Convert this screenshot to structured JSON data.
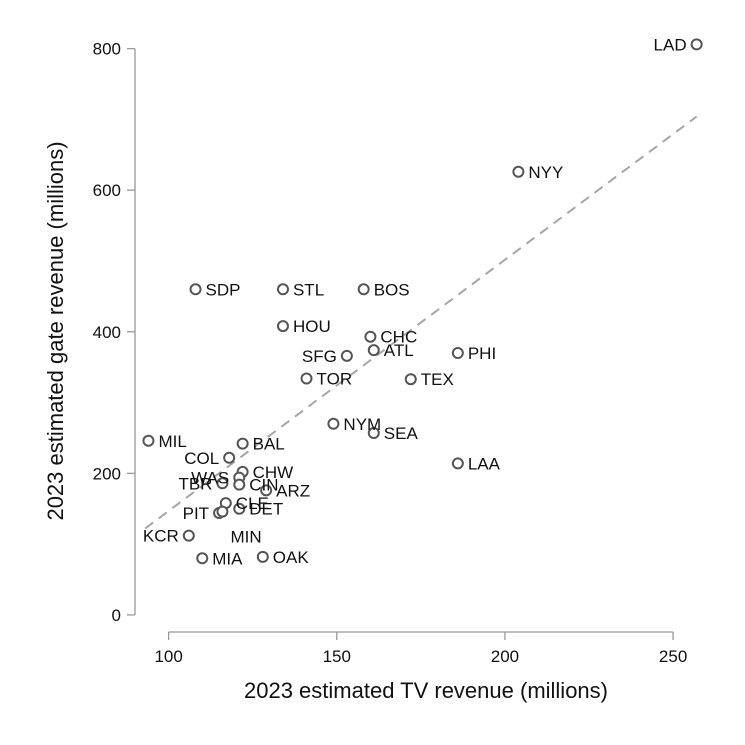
{
  "chart_data": {
    "type": "scatter",
    "title": "",
    "xlabel": "2023 estimated TV revenue (millions)",
    "ylabel": "2023 estimated gate revenue (millions)",
    "xlim": [
      90,
      258
    ],
    "ylim": [
      -10,
      815
    ],
    "x_ticks": [
      100,
      150,
      200,
      250
    ],
    "y_ticks": [
      0,
      200,
      400,
      600,
      800
    ],
    "grid": false,
    "colors": {
      "points": "#555555",
      "trend": "#a6a6a6",
      "axis": "#999999",
      "text": "#111111"
    },
    "trendline": {
      "style": "dashed",
      "from": [
        93,
        122
      ],
      "to": [
        257,
        704
      ]
    },
    "points": [
      {
        "team": "LAD",
        "x": 257,
        "y": 806,
        "label_pos": "left"
      },
      {
        "team": "NYY",
        "x": 204,
        "y": 626,
        "label_pos": "right"
      },
      {
        "team": "SDP",
        "x": 108,
        "y": 460,
        "label_pos": "right"
      },
      {
        "team": "STL",
        "x": 134,
        "y": 460,
        "label_pos": "right"
      },
      {
        "team": "BOS",
        "x": 158,
        "y": 460,
        "label_pos": "right"
      },
      {
        "team": "HOU",
        "x": 134,
        "y": 408,
        "label_pos": "right"
      },
      {
        "team": "CHC",
        "x": 160,
        "y": 393,
        "label_pos": "right"
      },
      {
        "team": "ATL",
        "x": 161,
        "y": 374,
        "label_pos": "right"
      },
      {
        "team": "SFG",
        "x": 153,
        "y": 366,
        "label_pos": "left"
      },
      {
        "team": "PHI",
        "x": 186,
        "y": 370,
        "label_pos": "right"
      },
      {
        "team": "TOR",
        "x": 141,
        "y": 334,
        "label_pos": "right"
      },
      {
        "team": "TEX",
        "x": 172,
        "y": 333,
        "label_pos": "right"
      },
      {
        "team": "NYM",
        "x": 149,
        "y": 270,
        "label_pos": "right"
      },
      {
        "team": "SEA",
        "x": 161,
        "y": 257,
        "label_pos": "right"
      },
      {
        "team": "MIL",
        "x": 94,
        "y": 246,
        "label_pos": "right"
      },
      {
        "team": "BAL",
        "x": 122,
        "y": 242,
        "label_pos": "right"
      },
      {
        "team": "LAA",
        "x": 186,
        "y": 214,
        "label_pos": "right"
      },
      {
        "team": "COL",
        "x": 118,
        "y": 222,
        "label_pos": "left"
      },
      {
        "team": "CHW",
        "x": 122,
        "y": 202,
        "label_pos": "right"
      },
      {
        "team": "WAS",
        "x": 121,
        "y": 194,
        "label_pos": "left"
      },
      {
        "team": "CIN",
        "x": 121,
        "y": 184,
        "label_pos": "right"
      },
      {
        "team": "ARZ",
        "x": 129,
        "y": 176,
        "label_pos": "right"
      },
      {
        "team": "TBR",
        "x": 116,
        "y": 186,
        "label_pos": "left"
      },
      {
        "team": "CLE",
        "x": 117,
        "y": 158,
        "label_pos": "right"
      },
      {
        "team": "DET",
        "x": 121,
        "y": 150,
        "label_pos": "right"
      },
      {
        "team": "PIT",
        "x": 115,
        "y": 144,
        "label_pos": "left"
      },
      {
        "team": "MIN",
        "x": 116,
        "y": 146,
        "label_pos": "below"
      },
      {
        "team": "KCR",
        "x": 106,
        "y": 112,
        "label_pos": "left"
      },
      {
        "team": "MIA",
        "x": 110,
        "y": 80,
        "label_pos": "right"
      },
      {
        "team": "OAK",
        "x": 128,
        "y": 82,
        "label_pos": "right"
      }
    ]
  }
}
